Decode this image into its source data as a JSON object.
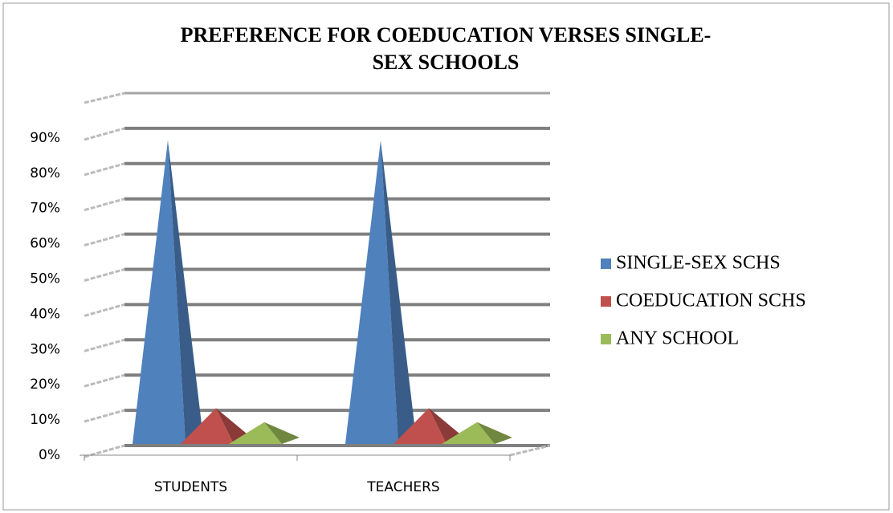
{
  "chart_data": {
    "type": "pyramid3d",
    "title": "PREFERENCE FOR COEDUCATION VERSES SINGLE-SEX SCHOOLS",
    "categories": [
      "STUDENTS",
      "TEACHERS"
    ],
    "series": [
      {
        "name": "SINGLE-SEX SCHS",
        "color": "#4f81bd",
        "values": [
          88,
          88
        ]
      },
      {
        "name": "COEDUCATION SCHS",
        "color": "#c0504d",
        "values": [
          12,
          12
        ]
      },
      {
        "name": "ANY SCHOOL",
        "color": "#9bbb59",
        "values": [
          8,
          8
        ]
      }
    ],
    "ylim": [
      0,
      100
    ],
    "yticks": [
      {
        "value": 0,
        "label": "0%"
      },
      {
        "value": 10,
        "label": "10%"
      },
      {
        "value": 20,
        "label": "20%"
      },
      {
        "value": 30,
        "label": "30%"
      },
      {
        "value": 40,
        "label": "40%"
      },
      {
        "value": 50,
        "label": "50%"
      },
      {
        "value": 60,
        "label": "60%"
      },
      {
        "value": 70,
        "label": "70%"
      },
      {
        "value": 80,
        "label": "80%"
      },
      {
        "value": 90,
        "label": "90%"
      }
    ],
    "grid": true,
    "legend": "right"
  }
}
